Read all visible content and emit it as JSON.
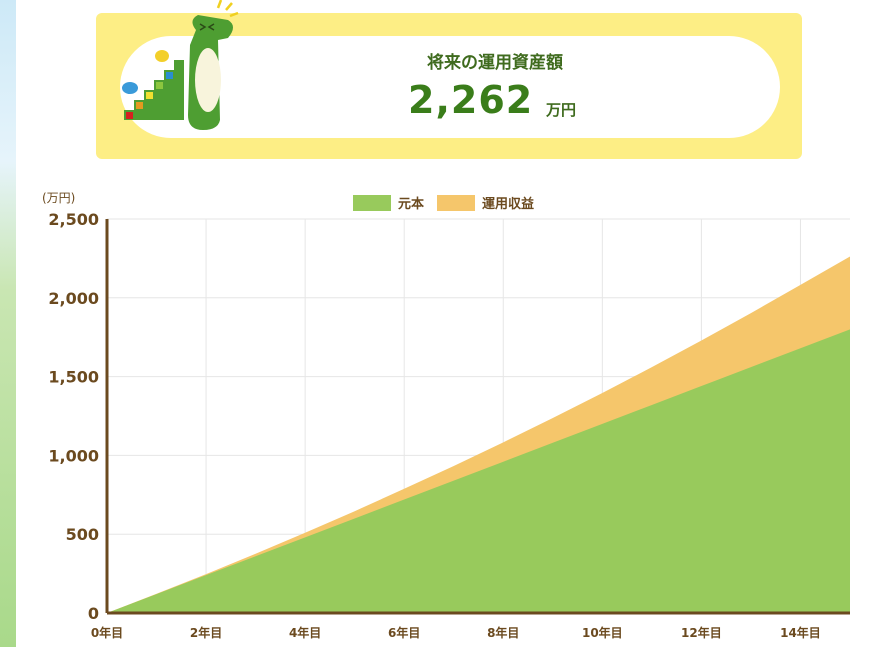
{
  "summary": {
    "title": "将来の運用資産額",
    "amount": "2,262",
    "unit": "万円"
  },
  "colors": {
    "principal": "#98ca5c",
    "return": "#f5c66b",
    "axis": "#6b4a1f",
    "banner": "#fdee85",
    "amount": "#3a7d1a"
  },
  "chart_data": {
    "type": "area",
    "stacked": true,
    "ylabel": "(万円)",
    "xlabel": "",
    "ylim": [
      0,
      2500
    ],
    "xlim": [
      0,
      15
    ],
    "yticks": [
      0,
      500,
      1000,
      1500,
      2000,
      2500
    ],
    "ytick_labels": [
      "0",
      "500",
      "1,000",
      "1,500",
      "2,000",
      "2,500"
    ],
    "xticks": [
      0,
      2,
      4,
      6,
      8,
      10,
      12,
      14
    ],
    "xtick_labels": [
      "0年目",
      "2年目",
      "4年目",
      "6年目",
      "8年目",
      "10年目",
      "12年目",
      "14年目"
    ],
    "grid": true,
    "legend_position": "top",
    "x": [
      0,
      1,
      2,
      3,
      4,
      5,
      6,
      7,
      8,
      9,
      10,
      11,
      12,
      13,
      14,
      15
    ],
    "series": [
      {
        "name": "元本",
        "values": [
          0,
          120,
          240,
          360,
          480,
          600,
          720,
          840,
          960,
          1080,
          1200,
          1320,
          1440,
          1560,
          1680,
          1800
        ]
      },
      {
        "name": "運用収益",
        "values": [
          0,
          2,
          7,
          16,
          29,
          46,
          68,
          93,
          123,
          157,
          196,
          240,
          289,
          343,
          402,
          462
        ]
      }
    ]
  }
}
